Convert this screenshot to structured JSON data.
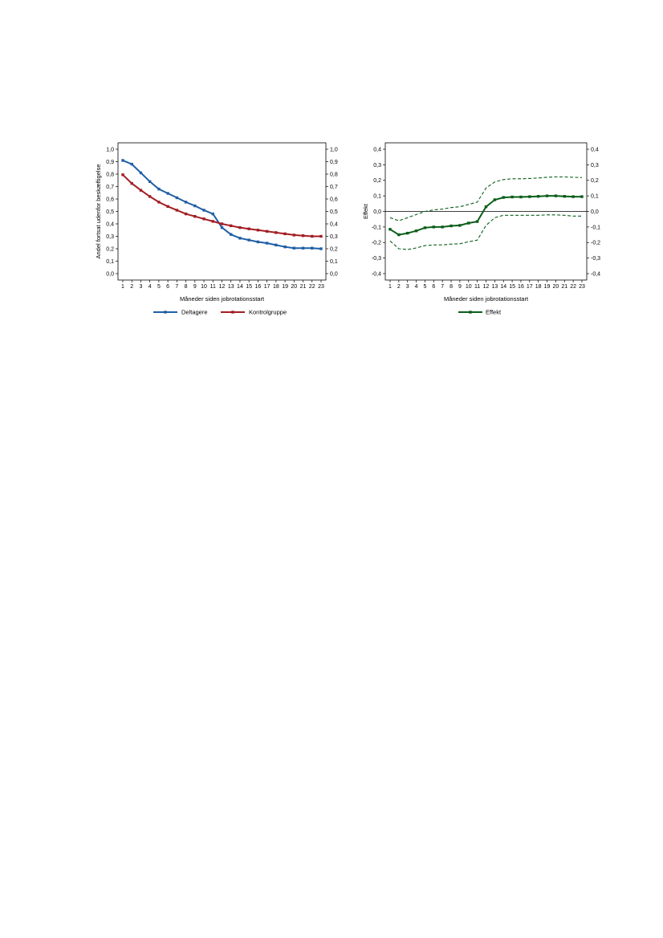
{
  "chart_data": [
    {
      "type": "line",
      "title": "",
      "xlabel": "Måneder siden jobrotationsstart",
      "ylabel": "Andel fortsat udenfor beskæftigelse",
      "x": [
        1,
        2,
        3,
        4,
        5,
        6,
        7,
        8,
        9,
        10,
        11,
        12,
        13,
        14,
        15,
        16,
        17,
        18,
        19,
        20,
        21,
        22,
        23
      ],
      "ylim": [
        0,
        1
      ],
      "yticks": [
        "0,0",
        "0,1",
        "0,2",
        "0,3",
        "0,4",
        "0,5",
        "0,6",
        "0,7",
        "0,8",
        "0,9",
        "1,0"
      ],
      "grid": false,
      "legend_position": "bottom",
      "series": [
        {
          "name": "Deltagere",
          "color": "#1f5fa6",
          "values": [
            0.91,
            0.88,
            0.81,
            0.74,
            0.68,
            0.645,
            0.61,
            0.575,
            0.545,
            0.51,
            0.48,
            0.37,
            0.315,
            0.285,
            0.27,
            0.255,
            0.245,
            0.23,
            0.215,
            0.205,
            0.205,
            0.205,
            0.2
          ]
        },
        {
          "name": "Kontrolgruppe",
          "color": "#a31d24",
          "values": [
            0.795,
            0.725,
            0.67,
            0.62,
            0.575,
            0.54,
            0.51,
            0.48,
            0.46,
            0.44,
            0.42,
            0.4,
            0.385,
            0.37,
            0.36,
            0.35,
            0.34,
            0.33,
            0.32,
            0.31,
            0.305,
            0.3,
            0.3
          ]
        }
      ]
    },
    {
      "type": "line",
      "title": "",
      "xlabel": "Måneder siden jobrotationsstart",
      "ylabel": "Effekt",
      "x": [
        1,
        2,
        3,
        4,
        5,
        6,
        7,
        8,
        9,
        10,
        11,
        12,
        13,
        14,
        15,
        16,
        17,
        18,
        19,
        20,
        21,
        22,
        23
      ],
      "ylim": [
        -0.4,
        0.4
      ],
      "yticks": [
        "-0,4",
        "-0,3",
        "-0,2",
        "-0,1",
        "0,0",
        "0,1",
        "0,2",
        "0,3",
        "0,4"
      ],
      "grid": false,
      "reference_line": 0,
      "legend_position": "bottom",
      "series": [
        {
          "name": "Effekt",
          "color": "#0b5e1a",
          "values": [
            -0.115,
            -0.15,
            -0.14,
            -0.125,
            -0.105,
            -0.1,
            -0.1,
            -0.093,
            -0.09,
            -0.075,
            -0.065,
            0.03,
            0.075,
            0.09,
            0.093,
            0.093,
            0.095,
            0.097,
            0.1,
            0.1,
            0.097,
            0.095,
            0.095
          ]
        },
        {
          "role": "upper-confidence-bound",
          "color": "#0b5e1a",
          "dashed": true,
          "values": [
            -0.04,
            -0.06,
            -0.04,
            -0.02,
            0.0,
            0.01,
            0.015,
            0.025,
            0.03,
            0.045,
            0.06,
            0.15,
            0.19,
            0.205,
            0.21,
            0.21,
            0.212,
            0.215,
            0.22,
            0.222,
            0.222,
            0.22,
            0.218
          ]
        },
        {
          "role": "lower-confidence-bound",
          "color": "#0b5e1a",
          "dashed": true,
          "values": [
            -0.19,
            -0.24,
            -0.245,
            -0.235,
            -0.22,
            -0.215,
            -0.215,
            -0.21,
            -0.208,
            -0.195,
            -0.185,
            -0.09,
            -0.04,
            -0.025,
            -0.025,
            -0.025,
            -0.025,
            -0.025,
            -0.022,
            -0.022,
            -0.025,
            -0.03,
            -0.03
          ]
        }
      ]
    }
  ]
}
